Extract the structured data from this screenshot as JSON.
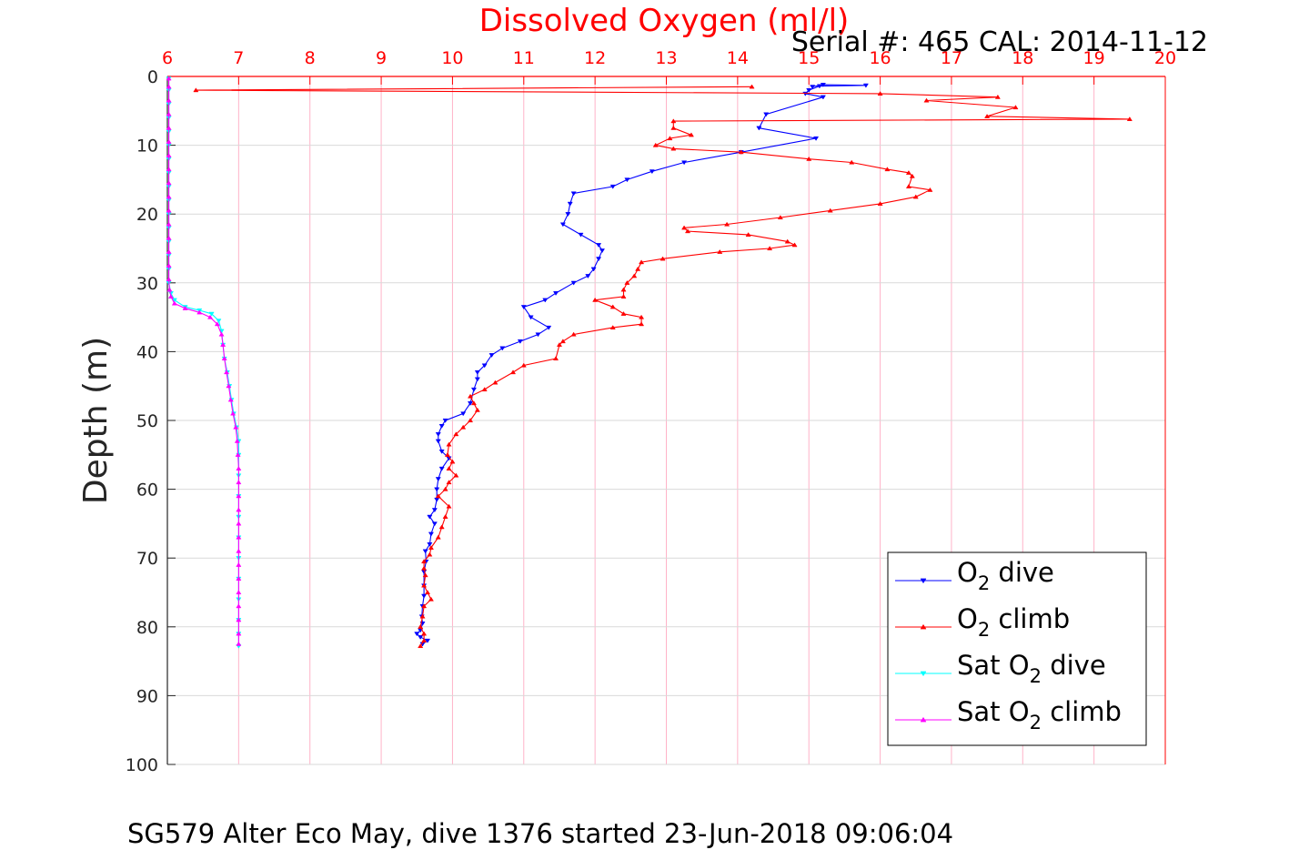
{
  "chart_data": {
    "type": "line",
    "title": "Dissolved Oxygen (ml/l)",
    "subtitle": "Serial #: 465  CAL: 2014-11-12",
    "footer": "SG579 Alter Eco May, dive 1376 started 23-Jun-2018 09:06:04",
    "xlabel": "",
    "ylabel": "Depth (m)",
    "xlim": [
      6,
      20
    ],
    "ylim": [
      0,
      100
    ],
    "y_reversed": true,
    "x_axis_position": "top",
    "xticks": [
      "6",
      "7",
      "8",
      "9",
      "10",
      "11",
      "12",
      "13",
      "14",
      "15",
      "16",
      "17",
      "18",
      "19",
      "20"
    ],
    "yticks": [
      "0",
      "10",
      "20",
      "30",
      "40",
      "50",
      "60",
      "70",
      "80",
      "90",
      "100"
    ],
    "grid": true,
    "legend_position": "bottom-right",
    "series": [
      {
        "name": "O2 dive",
        "legend_main": "O",
        "legend_sub": "2",
        "legend_tail": " dive",
        "color": "#0000ff",
        "marker": "triangle-down",
        "points": [
          [
            15.05,
            1.5
          ],
          [
            15.2,
            1.2
          ],
          [
            15.8,
            1.3
          ],
          [
            15.15,
            1.4
          ],
          [
            15.0,
            2.0
          ],
          [
            14.95,
            2.5
          ],
          [
            15.2,
            3.0
          ],
          [
            14.4,
            5.5
          ],
          [
            14.3,
            7.5
          ],
          [
            15.1,
            9.0
          ],
          [
            14.05,
            11.0
          ],
          [
            13.25,
            12.5
          ],
          [
            12.8,
            13.8
          ],
          [
            12.45,
            15.0
          ],
          [
            12.25,
            16.0
          ],
          [
            11.7,
            17.0
          ],
          [
            11.65,
            18.5
          ],
          [
            11.62,
            20.0
          ],
          [
            11.55,
            21.5
          ],
          [
            11.8,
            23.0
          ],
          [
            12.05,
            24.5
          ],
          [
            12.1,
            25.3
          ],
          [
            12.05,
            26.5
          ],
          [
            11.98,
            28.0
          ],
          [
            11.9,
            29.0
          ],
          [
            11.7,
            30.0
          ],
          [
            11.45,
            31.5
          ],
          [
            11.3,
            32.5
          ],
          [
            11.0,
            33.5
          ],
          [
            11.1,
            35.0
          ],
          [
            11.35,
            36.5
          ],
          [
            11.2,
            37.5
          ],
          [
            10.95,
            38.5
          ],
          [
            10.7,
            39.5
          ],
          [
            10.55,
            40.5
          ],
          [
            10.45,
            42.0
          ],
          [
            10.35,
            43.0
          ],
          [
            10.35,
            44.0
          ],
          [
            10.3,
            45.5
          ],
          [
            10.25,
            47.5
          ],
          [
            10.15,
            49.0
          ],
          [
            9.9,
            50.0
          ],
          [
            9.85,
            50.8
          ],
          [
            9.8,
            52.0
          ],
          [
            9.8,
            53.0
          ],
          [
            9.85,
            54.5
          ],
          [
            9.95,
            55.5
          ],
          [
            9.85,
            57.0
          ],
          [
            9.8,
            58.5
          ],
          [
            9.78,
            60.0
          ],
          [
            9.78,
            61.5
          ],
          [
            9.75,
            63.0
          ],
          [
            9.68,
            64.0
          ],
          [
            9.75,
            65.0
          ],
          [
            9.7,
            66.5
          ],
          [
            9.68,
            68.0
          ],
          [
            9.62,
            69.0
          ],
          [
            9.63,
            70.5
          ],
          [
            9.6,
            72.0
          ],
          [
            9.6,
            74.0
          ],
          [
            9.6,
            75.5
          ],
          [
            9.58,
            77.0
          ],
          [
            9.57,
            78.5
          ],
          [
            9.58,
            79.5
          ],
          [
            9.55,
            80.5
          ],
          [
            9.5,
            81.0
          ],
          [
            9.55,
            81.5
          ],
          [
            9.65,
            82.0
          ],
          [
            9.58,
            82.5
          ]
        ]
      },
      {
        "name": "O2 climb",
        "legend_main": "O",
        "legend_sub": "2",
        "legend_tail": " climb",
        "color": "#ff0000",
        "marker": "triangle-up",
        "points": [
          [
            9.55,
            82.8
          ],
          [
            9.6,
            82.0
          ],
          [
            9.6,
            81.0
          ],
          [
            9.55,
            80.0
          ],
          [
            9.58,
            78.5
          ],
          [
            9.6,
            77.0
          ],
          [
            9.7,
            76.0
          ],
          [
            9.65,
            75.0
          ],
          [
            9.6,
            74.0
          ],
          [
            9.62,
            72.5
          ],
          [
            9.6,
            71.5
          ],
          [
            9.6,
            70.5
          ],
          [
            9.68,
            69.5
          ],
          [
            9.7,
            68.5
          ],
          [
            9.8,
            67.0
          ],
          [
            9.85,
            65.5
          ],
          [
            9.9,
            64.0
          ],
          [
            9.95,
            62.5
          ],
          [
            9.8,
            61.0
          ],
          [
            9.9,
            60.0
          ],
          [
            9.95,
            59.0
          ],
          [
            10.05,
            58.0
          ],
          [
            9.95,
            57.0
          ],
          [
            10.0,
            56.0
          ],
          [
            9.93,
            55.0
          ],
          [
            9.95,
            53.5
          ],
          [
            10.05,
            52.0
          ],
          [
            10.15,
            51.0
          ],
          [
            10.25,
            50.0
          ],
          [
            10.35,
            48.5
          ],
          [
            10.3,
            47.5
          ],
          [
            10.25,
            46.5
          ],
          [
            10.45,
            45.5
          ],
          [
            10.6,
            44.5
          ],
          [
            10.85,
            43.0
          ],
          [
            11.0,
            42.0
          ],
          [
            11.45,
            41.0
          ],
          [
            11.5,
            39.0
          ],
          [
            11.55,
            38.5
          ],
          [
            11.7,
            37.5
          ],
          [
            12.25,
            36.5
          ],
          [
            12.65,
            36.0
          ],
          [
            12.65,
            35.0
          ],
          [
            12.4,
            34.5
          ],
          [
            12.25,
            33.5
          ],
          [
            12.0,
            32.5
          ],
          [
            12.4,
            32.0
          ],
          [
            12.4,
            31.0
          ],
          [
            12.45,
            30.0
          ],
          [
            12.55,
            29.0
          ],
          [
            12.6,
            28.0
          ],
          [
            12.65,
            27.0
          ],
          [
            12.95,
            26.5
          ],
          [
            13.75,
            25.5
          ],
          [
            14.45,
            25.0
          ],
          [
            14.8,
            24.5
          ],
          [
            14.7,
            24.0
          ],
          [
            14.15,
            23.0
          ],
          [
            13.3,
            22.5
          ],
          [
            13.25,
            22.0
          ],
          [
            13.85,
            21.5
          ],
          [
            14.6,
            20.5
          ],
          [
            15.3,
            19.5
          ],
          [
            16.0,
            18.5
          ],
          [
            16.5,
            17.5
          ],
          [
            16.7,
            16.5
          ],
          [
            16.4,
            16.0
          ],
          [
            16.45,
            14.5
          ],
          [
            16.4,
            14.0
          ],
          [
            16.1,
            13.5
          ],
          [
            15.6,
            12.5
          ],
          [
            15.0,
            12.0
          ],
          [
            14.05,
            11.0
          ],
          [
            13.1,
            10.5
          ],
          [
            12.85,
            10.0
          ],
          [
            13.05,
            9.0
          ],
          [
            13.35,
            8.5
          ],
          [
            13.1,
            7.5
          ],
          [
            13.1,
            6.5
          ],
          [
            19.5,
            6.2
          ],
          [
            17.5,
            5.8
          ],
          [
            17.9,
            4.5
          ],
          [
            16.65,
            3.5
          ],
          [
            17.65,
            3.0
          ],
          [
            16.0,
            2.5
          ],
          [
            6.4,
            2.0
          ],
          [
            14.2,
            1.5
          ]
        ]
      },
      {
        "name": "Sat O2 dive",
        "legend_main": "Sat O",
        "legend_sub": "2",
        "legend_tail": " dive",
        "color": "#00ffff",
        "marker": "triangle-down",
        "points": [
          [
            6.02,
            0.3
          ],
          [
            6.02,
            2.0
          ],
          [
            6.02,
            4.0
          ],
          [
            6.02,
            6.0
          ],
          [
            6.02,
            8.0
          ],
          [
            6.02,
            10.0
          ],
          [
            6.02,
            12.0
          ],
          [
            6.02,
            14.0
          ],
          [
            6.02,
            16.0
          ],
          [
            6.02,
            18.0
          ],
          [
            6.02,
            20.0
          ],
          [
            6.02,
            22.0
          ],
          [
            6.02,
            24.0
          ],
          [
            6.02,
            26.0
          ],
          [
            6.02,
            28.0
          ],
          [
            6.02,
            30.0
          ],
          [
            6.05,
            31.5
          ],
          [
            6.1,
            32.5
          ],
          [
            6.25,
            33.5
          ],
          [
            6.45,
            34.0
          ],
          [
            6.62,
            34.5
          ],
          [
            6.72,
            35.5
          ],
          [
            6.76,
            37.0
          ],
          [
            6.78,
            39.0
          ],
          [
            6.8,
            41.0
          ],
          [
            6.84,
            43.0
          ],
          [
            6.87,
            45.0
          ],
          [
            6.9,
            47.0
          ],
          [
            6.93,
            49.0
          ],
          [
            6.97,
            51.0
          ],
          [
            7.0,
            53.0
          ],
          [
            7.0,
            55.0
          ],
          [
            7.0,
            58.0
          ],
          [
            7.0,
            61.0
          ],
          [
            7.0,
            64.0
          ],
          [
            7.0,
            67.0
          ],
          [
            7.0,
            70.0
          ],
          [
            7.0,
            73.0
          ],
          [
            7.0,
            76.0
          ],
          [
            7.0,
            79.0
          ],
          [
            7.0,
            81.0
          ],
          [
            7.0,
            82.8
          ]
        ]
      },
      {
        "name": "Sat O2 climb",
        "legend_main": "Sat O",
        "legend_sub": "2",
        "legend_tail": " climb",
        "color": "#ff00ff",
        "marker": "triangle-up",
        "points": [
          [
            7.0,
            82.5
          ],
          [
            7.0,
            81.0
          ],
          [
            7.0,
            79.0
          ],
          [
            7.0,
            77.0
          ],
          [
            7.0,
            75.0
          ],
          [
            7.0,
            73.0
          ],
          [
            7.0,
            71.0
          ],
          [
            7.0,
            69.0
          ],
          [
            7.0,
            67.0
          ],
          [
            7.0,
            65.0
          ],
          [
            7.0,
            63.0
          ],
          [
            7.0,
            61.0
          ],
          [
            7.0,
            59.0
          ],
          [
            7.0,
            57.0
          ],
          [
            6.99,
            55.0
          ],
          [
            6.98,
            53.0
          ],
          [
            6.96,
            51.0
          ],
          [
            6.92,
            49.0
          ],
          [
            6.89,
            47.0
          ],
          [
            6.86,
            45.0
          ],
          [
            6.83,
            43.0
          ],
          [
            6.8,
            41.0
          ],
          [
            6.78,
            39.0
          ],
          [
            6.76,
            37.5
          ],
          [
            6.7,
            36.0
          ],
          [
            6.6,
            35.0
          ],
          [
            6.45,
            34.3
          ],
          [
            6.25,
            33.7
          ],
          [
            6.1,
            33.0
          ],
          [
            6.05,
            32.0
          ],
          [
            6.03,
            31.0
          ],
          [
            6.02,
            29.5
          ],
          [
            6.02,
            27.5
          ],
          [
            6.02,
            25.5
          ],
          [
            6.02,
            23.5
          ],
          [
            6.02,
            21.5
          ],
          [
            6.02,
            19.5
          ],
          [
            6.02,
            17.5
          ],
          [
            6.02,
            15.5
          ],
          [
            6.02,
            13.5
          ],
          [
            6.02,
            11.5
          ],
          [
            6.02,
            9.5
          ],
          [
            6.02,
            7.5
          ],
          [
            6.02,
            5.5
          ],
          [
            6.02,
            3.5
          ],
          [
            6.02,
            1.5
          ],
          [
            6.02,
            0.3
          ]
        ]
      }
    ]
  },
  "colors": {
    "axis_x": "#ff0000",
    "axis_y": "#262626",
    "grid_x": "#ffb3c8",
    "grid_y": "#d9d9d9"
  }
}
